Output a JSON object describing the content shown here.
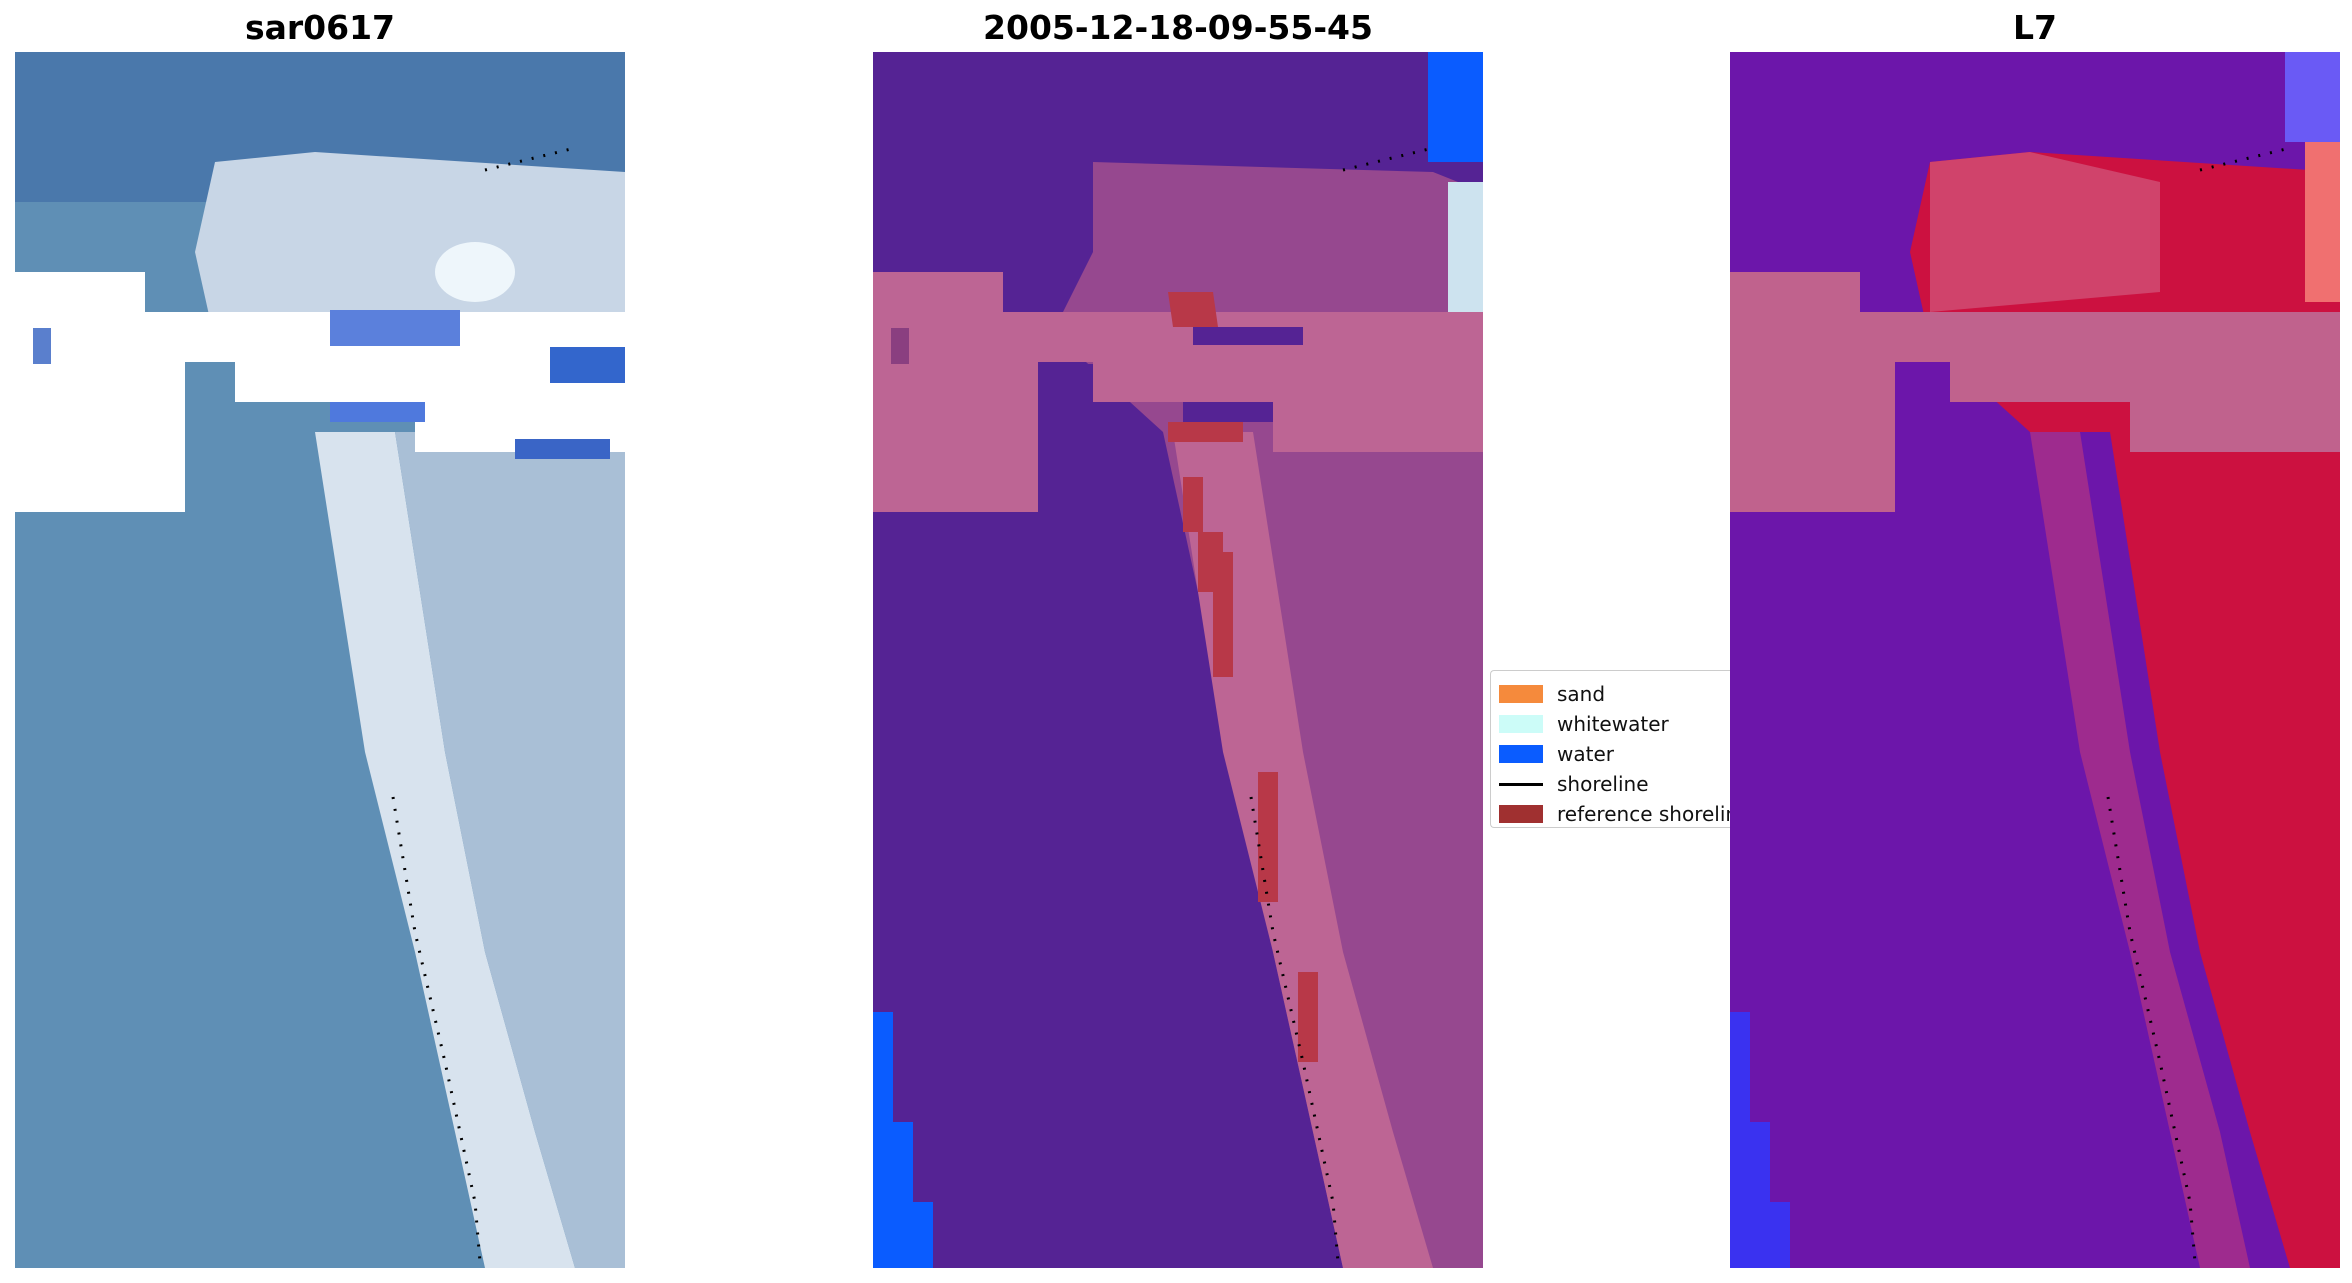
{
  "panels": [
    {
      "title": "sar0617",
      "kind": "rgb"
    },
    {
      "title": "2005-12-18-09-55-45",
      "kind": "classified"
    },
    {
      "title": "L7",
      "kind": "index"
    }
  ],
  "legend": {
    "items": [
      {
        "label": "sand",
        "color": "#f58a3c",
        "type": "patch"
      },
      {
        "label": "whitewater",
        "color": "#ccfcf8",
        "type": "patch"
      },
      {
        "label": "water",
        "color": "#0a5cff",
        "type": "patch"
      },
      {
        "label": "shoreline",
        "color": "#000000",
        "type": "line"
      },
      {
        "label": "reference shoreline",
        "color": "#a03030",
        "type": "patch"
      }
    ]
  },
  "colors": {
    "ocean_rgb": "#5f8fb5",
    "deep_ocean_rgb": "#4a78ab",
    "beach_rgb": "#d8e3ee",
    "cloud_mask": "#ffffff",
    "classified_background": "#552394",
    "classified_land": "#96488f",
    "classified_cloud": "#bd6594",
    "classified_water": "#0a5cff",
    "reference_shoreline": "#b83848",
    "index_water": "#6c16aa",
    "index_land": "#cc1140",
    "index_cloud": "#c0628d",
    "index_blue": "#3a32f0",
    "shoreline_dots": "#000000"
  }
}
